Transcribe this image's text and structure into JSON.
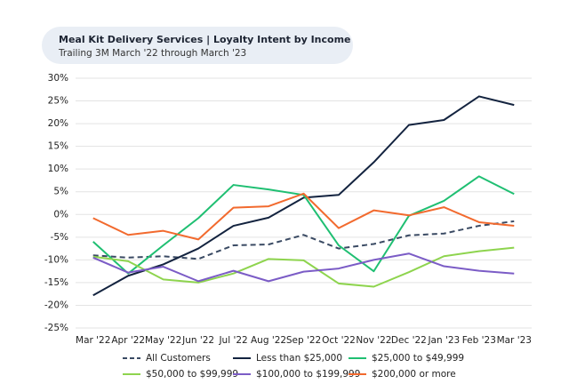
{
  "chart_data": {
    "type": "line",
    "title": "Meal Kit Delivery Services | Loyalty Intent by Income",
    "subtitle": "Trailing 3M March '22 through March '23",
    "categories": [
      "Mar '22",
      "Apr '22",
      "May '22",
      "Jun '22",
      "Jul '22",
      "Aug '22",
      "Sep '22",
      "Oct '22",
      "Nov '22",
      "Dec '22",
      "Jan '23",
      "Feb '23",
      "Mar '23"
    ],
    "series": [
      {
        "name": "All Customers",
        "color": "#3a4a63",
        "dashed": true,
        "values": [
          -9,
          -9.5,
          -9.2,
          -9.8,
          -6.8,
          -6.6,
          -4.5,
          -7.5,
          -6.5,
          -4.6,
          -4.2,
          -2.5,
          -1.5
        ]
      },
      {
        "name": "Less than $25,000",
        "color": "#13233f",
        "values": [
          -17.8,
          -13.5,
          -11,
          -7.5,
          -2.5,
          -0.7,
          3.7,
          4.3,
          11.5,
          19.7,
          20.8,
          26,
          24.1
        ]
      },
      {
        "name": "$25,000 to $49,999",
        "color": "#1fbf72",
        "values": [
          -6,
          -13,
          -6.8,
          -0.8,
          6.5,
          5.5,
          4.3,
          -6.8,
          -12.5,
          -0.3,
          3,
          8.4,
          4.5
        ]
      },
      {
        "name": "$50,000 to $99,999",
        "color": "#8ed44e",
        "values": [
          -9.3,
          -10.3,
          -14.3,
          -15,
          -13,
          -9.8,
          -10.1,
          -15.2,
          -15.9,
          -12.7,
          -9.2,
          -8.1,
          -7.3
        ]
      },
      {
        "name": "$100,000 to $199,999",
        "color": "#7b5cc6",
        "values": [
          -9.5,
          -12.8,
          -11.5,
          -14.7,
          -12.4,
          -14.7,
          -12.6,
          -11.9,
          -10,
          -8.6,
          -11.4,
          -12.4,
          -13
        ]
      },
      {
        "name": "$200,000 or more",
        "color": "#f26a2e",
        "values": [
          -0.8,
          -4.5,
          -3.6,
          -5.5,
          1.5,
          1.8,
          4.6,
          -3,
          0.9,
          -0.2,
          1.6,
          -1.7,
          -2.5
        ]
      }
    ],
    "ylim": [
      -25,
      30
    ],
    "yticks": [
      {
        "value": -25,
        "label": "-25%"
      },
      {
        "value": -20,
        "label": "-20%"
      },
      {
        "value": -15,
        "label": "-15%"
      },
      {
        "value": -10,
        "label": "-10%"
      },
      {
        "value": -5,
        "label": "-5%"
      },
      {
        "value": 0,
        "label": "0%"
      },
      {
        "value": 5,
        "label": "5%"
      },
      {
        "value": 10,
        "label": "10%"
      },
      {
        "value": 15,
        "label": "15%"
      },
      {
        "value": 20,
        "label": "20%"
      },
      {
        "value": 25,
        "label": "25%"
      },
      {
        "value": 30,
        "label": "30%"
      }
    ],
    "grid": true
  }
}
